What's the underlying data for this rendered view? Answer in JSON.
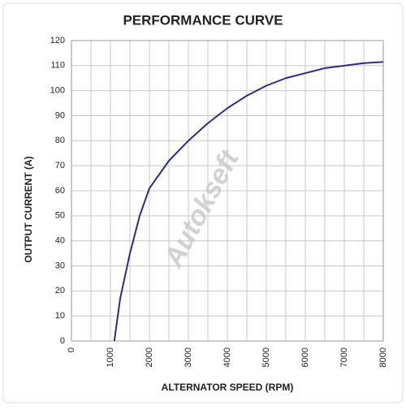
{
  "chart_data": {
    "type": "line",
    "title": "PERFORMANCE CURVE",
    "x_label": "ALTERNATOR SPEED (RPM)",
    "y_label": "OUTPUT CURRENT (A)",
    "watermark": "Autokseft",
    "x": [
      1100,
      1250,
      1500,
      1750,
      2000,
      2500,
      3000,
      3500,
      4000,
      4500,
      5000,
      5500,
      6000,
      6500,
      7000,
      7500,
      8000
    ],
    "series": [
      {
        "color": "#2b2b8c",
        "values": [
          0,
          17,
          35,
          50,
          61,
          72,
          80,
          87,
          93,
          98,
          102,
          105,
          107,
          109,
          110,
          111,
          111.5
        ]
      }
    ],
    "xlim": [
      0,
      8000
    ],
    "xticks": [
      0,
      1000,
      2000,
      3000,
      4000,
      5000,
      6000,
      7000,
      8000
    ],
    "xgrid": [
      500,
      1500,
      2500,
      3500,
      4500,
      5500,
      6500,
      7500
    ],
    "ylim": [
      0,
      120
    ],
    "yticks": [
      0,
      10,
      20,
      30,
      40,
      50,
      60,
      70,
      80,
      90,
      100,
      110,
      120
    ],
    "grid": true
  }
}
